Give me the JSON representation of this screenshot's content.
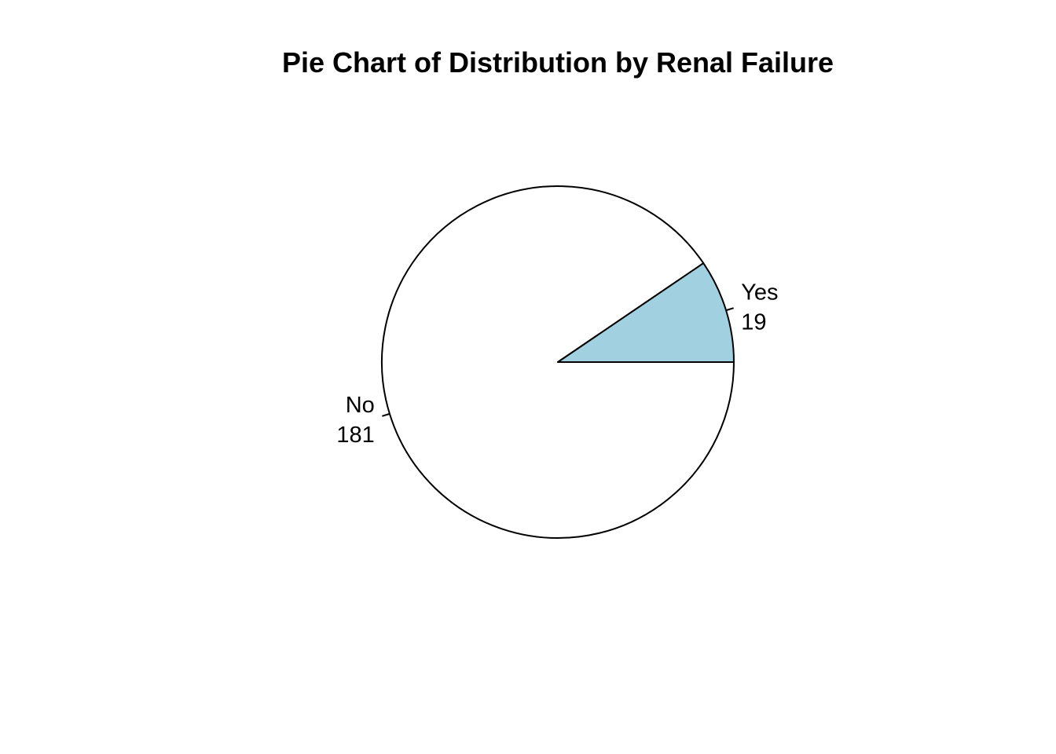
{
  "chart_data": {
    "type": "pie",
    "title": "Pie Chart of Distribution by Renal Failure",
    "slices": [
      {
        "label": "No",
        "value": 181,
        "color": "#ffffff"
      },
      {
        "label": "Yes",
        "value": 19,
        "color": "#a1d0e0"
      }
    ],
    "start_angle_deg": 0,
    "direction": "clockwise",
    "labels_show_values": true
  }
}
